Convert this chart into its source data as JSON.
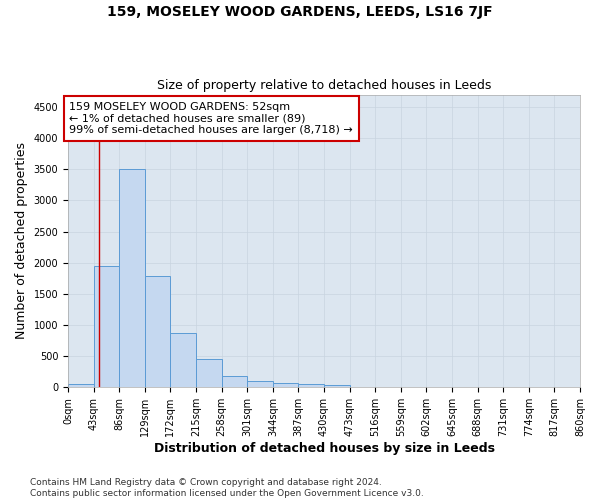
{
  "title": "159, MOSELEY WOOD GARDENS, LEEDS, LS16 7JF",
  "subtitle": "Size of property relative to detached houses in Leeds",
  "xlabel": "Distribution of detached houses by size in Leeds",
  "ylabel": "Number of detached properties",
  "bin_edges": [
    0,
    43,
    86,
    129,
    172,
    215,
    258,
    301,
    344,
    387,
    430,
    473,
    516,
    559,
    602,
    645,
    688,
    731,
    774,
    817,
    860
  ],
  "bar_heights": [
    50,
    1950,
    3500,
    1780,
    870,
    460,
    185,
    105,
    65,
    50,
    30,
    10,
    0,
    0,
    0,
    0,
    0,
    0,
    0,
    0
  ],
  "bar_color": "#c5d8f0",
  "bar_edge_color": "#5b9bd5",
  "property_line_x": 52,
  "property_line_color": "#cc0000",
  "annotation_text": "159 MOSELEY WOOD GARDENS: 52sqm\n← 1% of detached houses are smaller (89)\n99% of semi-detached houses are larger (8,718) →",
  "annotation_box_color": "#cc0000",
  "ylim": [
    0,
    4700
  ],
  "yticks": [
    0,
    500,
    1000,
    1500,
    2000,
    2500,
    3000,
    3500,
    4000,
    4500
  ],
  "tick_labels": [
    "0sqm",
    "43sqm",
    "86sqm",
    "129sqm",
    "172sqm",
    "215sqm",
    "258sqm",
    "301sqm",
    "344sqm",
    "387sqm",
    "430sqm",
    "473sqm",
    "516sqm",
    "559sqm",
    "602sqm",
    "645sqm",
    "688sqm",
    "731sqm",
    "774sqm",
    "817sqm",
    "860sqm"
  ],
  "grid_color": "#c8d4e0",
  "background_color": "#dce6f0",
  "footer_text": "Contains HM Land Registry data © Crown copyright and database right 2024.\nContains public sector information licensed under the Open Government Licence v3.0.",
  "title_fontsize": 10,
  "subtitle_fontsize": 9,
  "axis_label_fontsize": 9,
  "tick_fontsize": 7,
  "footer_fontsize": 6.5,
  "annotation_fontsize": 8
}
